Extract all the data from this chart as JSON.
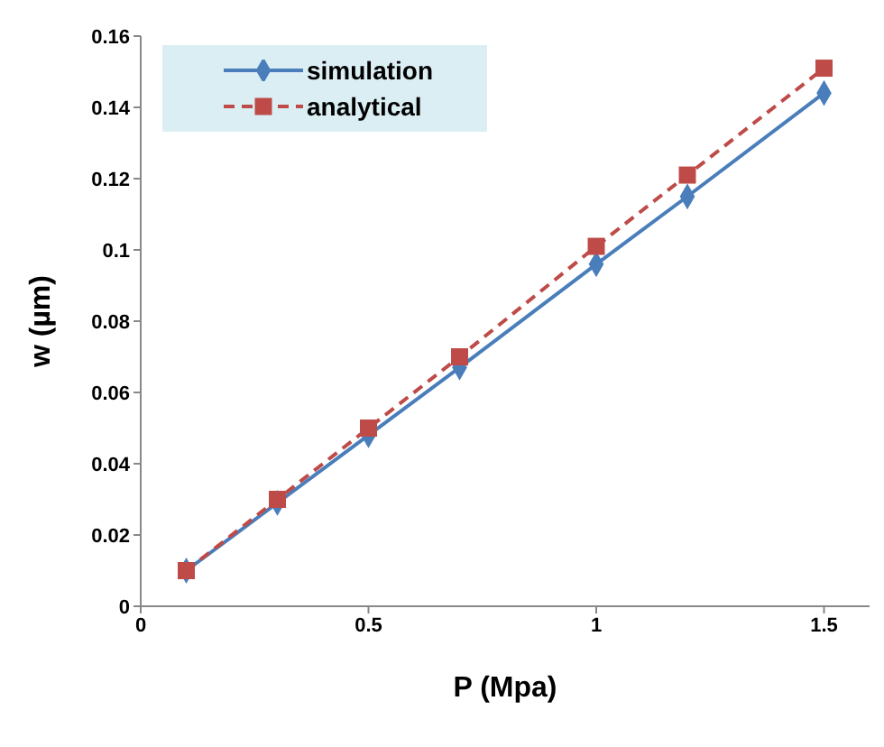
{
  "chart_data": {
    "type": "line",
    "xlabel": "P (Mpa)",
    "ylabel": "w (µm)",
    "x": [
      0.1,
      0.3,
      0.5,
      0.7,
      1.0,
      1.2,
      1.5
    ],
    "series": [
      {
        "name": "simulation",
        "color": "#4a7ebb",
        "marker": "diamond",
        "line_style": "solid",
        "values": [
          0.01,
          0.029,
          0.048,
          0.067,
          0.096,
          0.115,
          0.144
        ]
      },
      {
        "name": "analytical",
        "color": "#be4b48",
        "marker": "square",
        "line_style": "dashed",
        "values": [
          0.01,
          0.03,
          0.05,
          0.07,
          0.101,
          0.121,
          0.151
        ]
      }
    ],
    "xlim": [
      0,
      1.6
    ],
    "xticks": [
      0,
      0.5,
      1,
      1.5
    ],
    "ylim": [
      0,
      0.16
    ],
    "yticks": [
      0,
      0.02,
      0.04,
      0.06,
      0.08,
      0.1,
      0.12,
      0.14,
      0.16
    ],
    "grid": false,
    "legend": "top left"
  }
}
